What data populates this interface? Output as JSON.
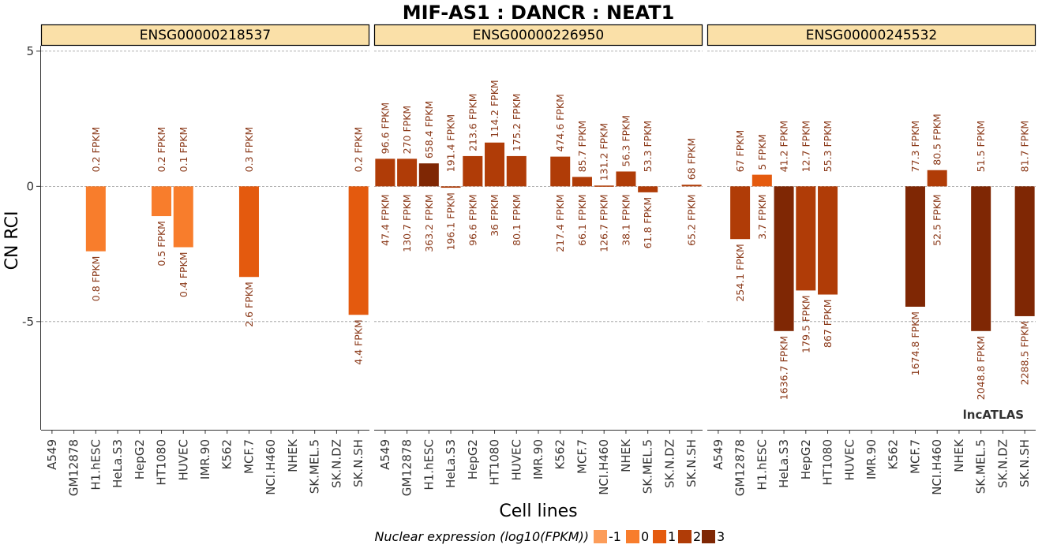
{
  "title": "MIF-AS1 : DANCR : NEAT1",
  "watermark": "lncATLAS",
  "chart_data": {
    "type": "bar",
    "title": "MIF-AS1 : DANCR : NEAT1",
    "xlabel": "Cell lines",
    "ylabel": "CN RCI",
    "ylim": [
      -9.0,
      5.2
    ],
    "yticks": [
      5,
      0,
      -5
    ],
    "ytick_labels": [
      "5",
      "0",
      "-5"
    ],
    "grid": "dashed horizontal at ticks",
    "categories": [
      "A549",
      "GM12878",
      "H1.hESC",
      "HeLa.S3",
      "HepG2",
      "HT1080",
      "HUVEC",
      "IMR.90",
      "K562",
      "MCF.7",
      "NCI.H460",
      "NHEK",
      "SK.MEL.5",
      "SK.N.DZ",
      "SK.N.SH"
    ],
    "legend": {
      "title": "Nuclear expression (log10(FPKM))",
      "position": "bottom",
      "items": [
        {
          "label": "-1",
          "color": "#FC9D5A"
        },
        {
          "label": "0",
          "color": "#F87D2C"
        },
        {
          "label": "1",
          "color": "#E45A0E"
        },
        {
          "label": "2",
          "color": "#B03C07"
        },
        {
          "label": "3",
          "color": "#7F2704"
        }
      ]
    },
    "panels": [
      {
        "name": "ENSG00000218537",
        "bars": [
          {
            "cell": "H1.hESC",
            "value": -2.4,
            "nuc": "0.8 FPKM",
            "cyt": "0.2 FPKM",
            "color": "#F87D2C"
          },
          {
            "cell": "HT1080",
            "value": -1.1,
            "nuc": "0.5 FPKM",
            "cyt": "0.2 FPKM",
            "color": "#F87D2C"
          },
          {
            "cell": "HUVEC",
            "value": -2.25,
            "nuc": "0.4 FPKM",
            "cyt": "0.1 FPKM",
            "color": "#F87D2C"
          },
          {
            "cell": "MCF.7",
            "value": -3.35,
            "nuc": "2.6 FPKM",
            "cyt": "0.3 FPKM",
            "color": "#E45A0E"
          },
          {
            "cell": "SK.N.SH",
            "value": -4.75,
            "nuc": "4.4 FPKM",
            "cyt": "0.2 FPKM",
            "color": "#E45A0E"
          }
        ]
      },
      {
        "name": "ENSG00000226950",
        "bars": [
          {
            "cell": "A549",
            "value": 1.02,
            "nuc": "47.4 FPKM",
            "cyt": "96.6 FPKM",
            "color": "#B03C07"
          },
          {
            "cell": "GM12878",
            "value": 1.02,
            "nuc": "130.7 FPKM",
            "cyt": "270 FPKM",
            "color": "#B03C07"
          },
          {
            "cell": "H1.hESC",
            "value": 0.85,
            "nuc": "363.2 FPKM",
            "cyt": "658.4 FPKM",
            "color": "#7F2704"
          },
          {
            "cell": "HeLa.S3",
            "value": -0.05,
            "nuc": "196.1 FPKM",
            "cyt": "191.4 FPKM",
            "color": "#B03C07"
          },
          {
            "cell": "HepG2",
            "value": 1.12,
            "nuc": "96.6 FPKM",
            "cyt": "213.6 FPKM",
            "color": "#B03C07"
          },
          {
            "cell": "HT1080",
            "value": 1.62,
            "nuc": "36 FPKM",
            "cyt": "114.2 FPKM",
            "color": "#B03C07"
          },
          {
            "cell": "HUVEC",
            "value": 1.12,
            "nuc": "80.1 FPKM",
            "cyt": "175.2 FPKM",
            "color": "#B03C07"
          },
          {
            "cell": "K562",
            "value": 1.1,
            "nuc": "217.4 FPKM",
            "cyt": "474.6 FPKM",
            "color": "#B03C07"
          },
          {
            "cell": "MCF.7",
            "value": 0.35,
            "nuc": "66.1 FPKM",
            "cyt": "85.7 FPKM",
            "color": "#B03C07"
          },
          {
            "cell": "NCI.H460",
            "value": 0.03,
            "nuc": "126.7 FPKM",
            "cyt": "131.2 FPKM",
            "color": "#B03C07"
          },
          {
            "cell": "NHEK",
            "value": 0.55,
            "nuc": "38.1 FPKM",
            "cyt": "56.3 FPKM",
            "color": "#B03C07"
          },
          {
            "cell": "SK.MEL.5",
            "value": -0.22,
            "nuc": "61.8 FPKM",
            "cyt": "53.3 FPKM",
            "color": "#B03C07"
          },
          {
            "cell": "SK.N.SH",
            "value": 0.06,
            "nuc": "65.2 FPKM",
            "cyt": "68 FPKM",
            "color": "#B03C07"
          }
        ]
      },
      {
        "name": "ENSG00000245532",
        "bars": [
          {
            "cell": "GM12878",
            "value": -1.95,
            "nuc": "254.1 FPKM",
            "cyt": "67 FPKM",
            "color": "#B03C07"
          },
          {
            "cell": "H1.hESC",
            "value": 0.43,
            "nuc": "3.7 FPKM",
            "cyt": "5 FPKM",
            "color": "#E45A0E"
          },
          {
            "cell": "HeLa.S3",
            "value": -5.35,
            "nuc": "1636.7 FPKM",
            "cyt": "41.2 FPKM",
            "color": "#7F2704"
          },
          {
            "cell": "HepG2",
            "value": -3.85,
            "nuc": "179.5 FPKM",
            "cyt": "12.7 FPKM",
            "color": "#B03C07"
          },
          {
            "cell": "HT1080",
            "value": -4.0,
            "nuc": "867 FPKM",
            "cyt": "55.3 FPKM",
            "color": "#B03C07"
          },
          {
            "cell": "MCF.7",
            "value": -4.45,
            "nuc": "1674.8 FPKM",
            "cyt": "77.3 FPKM",
            "color": "#7F2704"
          },
          {
            "cell": "NCI.H460",
            "value": 0.6,
            "nuc": "52.5 FPKM",
            "cyt": "80.5 FPKM",
            "color": "#B03C07"
          },
          {
            "cell": "SK.MEL.5",
            "value": -5.35,
            "nuc": "2048.8 FPKM",
            "cyt": "51.5 FPKM",
            "color": "#7F2704"
          },
          {
            "cell": "SK.N.SH",
            "value": -4.8,
            "nuc": "2288.5 FPKM",
            "cyt": "81.7 FPKM",
            "color": "#7F2704"
          }
        ]
      }
    ]
  },
  "colors": {
    "strip_fill": "#FAE0A8",
    "strip_border": "#000000",
    "grid": "#9A9A9A",
    "label": "#8B3A1A"
  }
}
